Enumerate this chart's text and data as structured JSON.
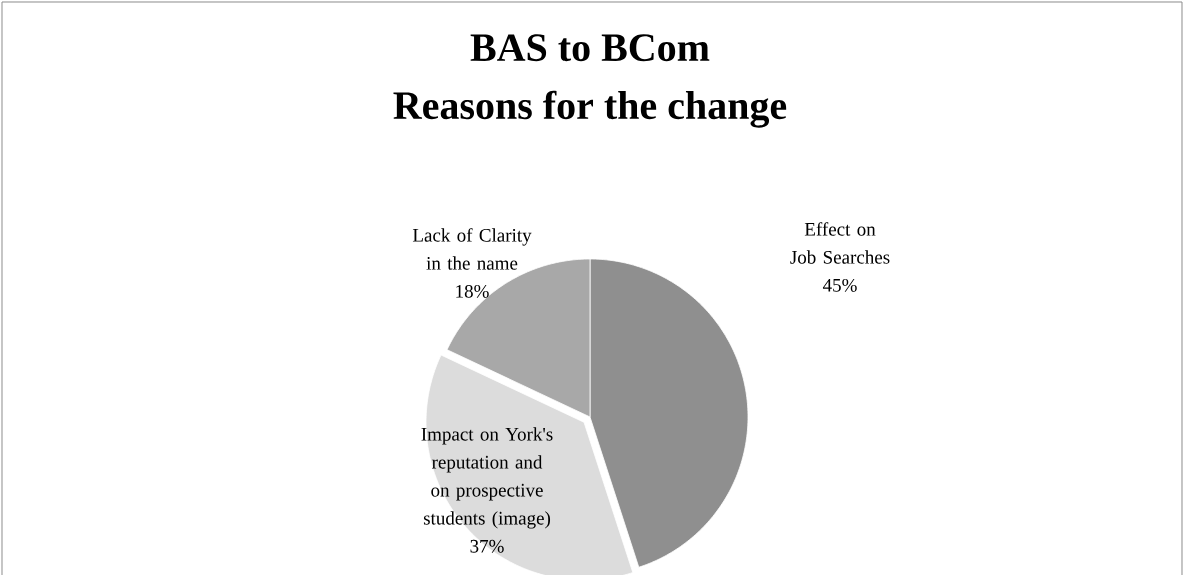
{
  "chart_data": {
    "type": "pie",
    "title": "BAS to BCom",
    "subtitle": "Reasons for the change",
    "categories": [
      "Effect on Job Searches",
      "Impact on York's reputation and on prospective students (image)",
      "Lack of Clarity in the name"
    ],
    "values": [
      45,
      37,
      18
    ],
    "value_labels": [
      "45%",
      "37%",
      "18%"
    ],
    "colors": [
      "#8f8f8f",
      "#dcdcdc",
      "#a8a8a8"
    ]
  }
}
